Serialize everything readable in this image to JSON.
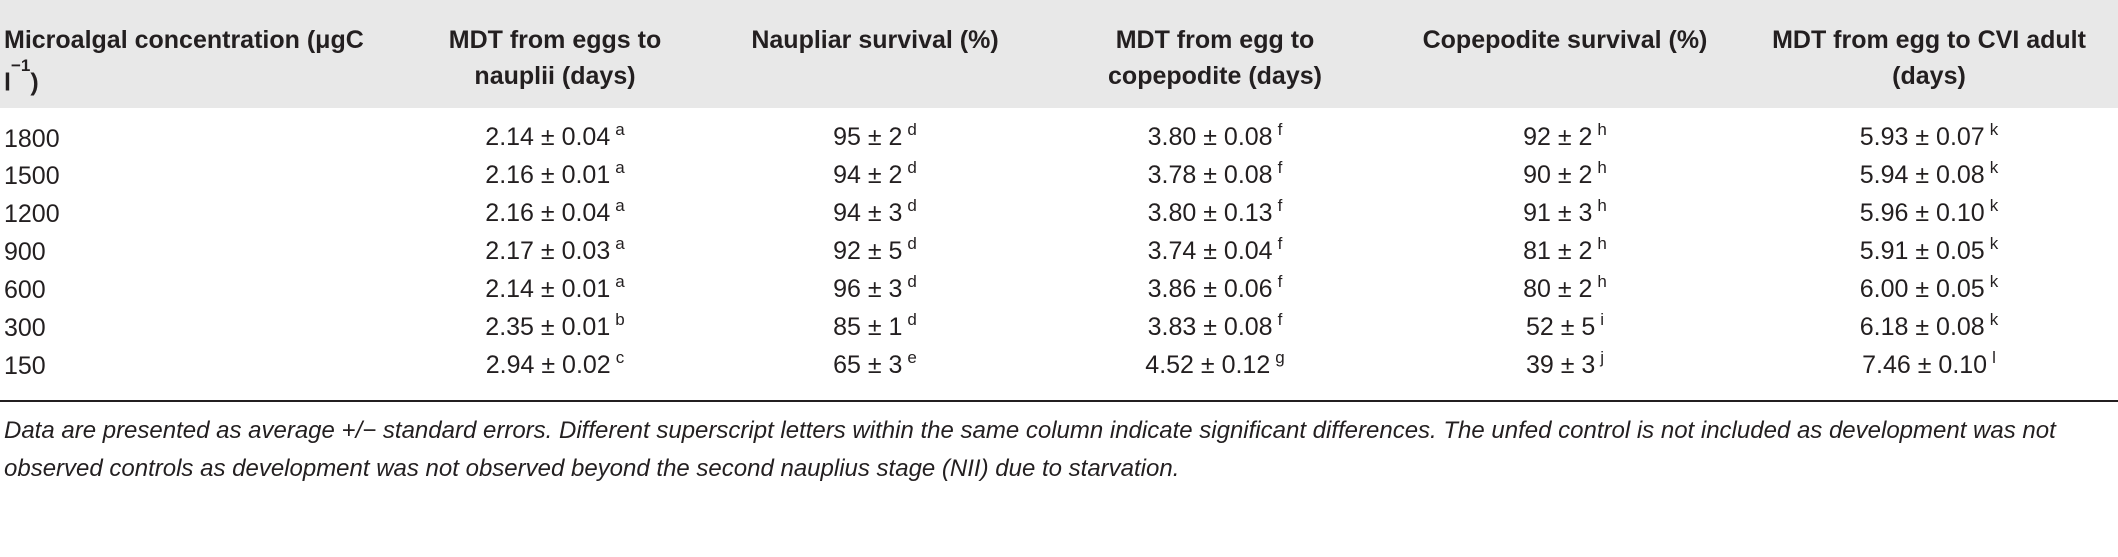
{
  "table": {
    "headers": [
      "Microalgal concentration (μgC l",
      "MDT from eggs to nauplii (days)",
      "Naupliar survival (%)",
      "MDT from egg to copepodite (days)",
      "Copepodite survival (%)",
      "MDT from egg to CVI adult (days)"
    ],
    "header_unit_suffix": ")",
    "header_unit_exponent": "−1",
    "rows": [
      {
        "concentration": "1800",
        "cells": [
          {
            "value": "2.14 ± 0.04",
            "sup": "a"
          },
          {
            "value": "95 ± 2",
            "sup": "d"
          },
          {
            "value": "3.80 ± 0.08",
            "sup": "f"
          },
          {
            "value": "92 ± 2",
            "sup": "h"
          },
          {
            "value": "5.93 ± 0.07",
            "sup": "k"
          }
        ]
      },
      {
        "concentration": "1500",
        "cells": [
          {
            "value": "2.16 ± 0.01",
            "sup": "a"
          },
          {
            "value": "94 ± 2",
            "sup": "d"
          },
          {
            "value": "3.78 ± 0.08",
            "sup": "f"
          },
          {
            "value": "90 ± 2",
            "sup": "h"
          },
          {
            "value": "5.94 ± 0.08",
            "sup": "k"
          }
        ]
      },
      {
        "concentration": "1200",
        "cells": [
          {
            "value": "2.16 ± 0.04",
            "sup": "a"
          },
          {
            "value": "94 ± 3",
            "sup": "d"
          },
          {
            "value": "3.80 ± 0.13",
            "sup": "f"
          },
          {
            "value": "91 ± 3",
            "sup": "h"
          },
          {
            "value": "5.96 ± 0.10",
            "sup": "k"
          }
        ]
      },
      {
        "concentration": "900",
        "cells": [
          {
            "value": "2.17 ± 0.03",
            "sup": "a"
          },
          {
            "value": "92 ± 5",
            "sup": "d"
          },
          {
            "value": "3.74 ± 0.04",
            "sup": "f"
          },
          {
            "value": "81 ± 2",
            "sup": "h"
          },
          {
            "value": "5.91 ± 0.05",
            "sup": "k"
          }
        ]
      },
      {
        "concentration": "600",
        "cells": [
          {
            "value": "2.14 ± 0.01",
            "sup": "a"
          },
          {
            "value": "96 ± 3",
            "sup": "d"
          },
          {
            "value": "3.86 ± 0.06",
            "sup": "f"
          },
          {
            "value": "80 ± 2",
            "sup": "h"
          },
          {
            "value": "6.00 ± 0.05",
            "sup": "k"
          }
        ]
      },
      {
        "concentration": "300",
        "cells": [
          {
            "value": "2.35 ± 0.01",
            "sup": "b"
          },
          {
            "value": "85 ± 1",
            "sup": "d"
          },
          {
            "value": "3.83 ± 0.08",
            "sup": "f"
          },
          {
            "value": "52 ± 5",
            "sup": "i"
          },
          {
            "value": "6.18 ± 0.08",
            "sup": "k"
          }
        ]
      },
      {
        "concentration": "150",
        "cells": [
          {
            "value": "2.94 ± 0.02",
            "sup": "c"
          },
          {
            "value": "65 ± 3",
            "sup": "e"
          },
          {
            "value": "4.52 ± 0.12",
            "sup": "g"
          },
          {
            "value": "39 ± 3",
            "sup": "j"
          },
          {
            "value": "7.46 ± 0.10",
            "sup": "l"
          }
        ]
      }
    ]
  },
  "footnote": "Data are presented as average +/− standard errors. Different superscript letters within the same column indicate significant differences. The unfed control is not included as development was not observed controls as development was not observed beyond the second nauplius stage (NII) due to starvation."
}
